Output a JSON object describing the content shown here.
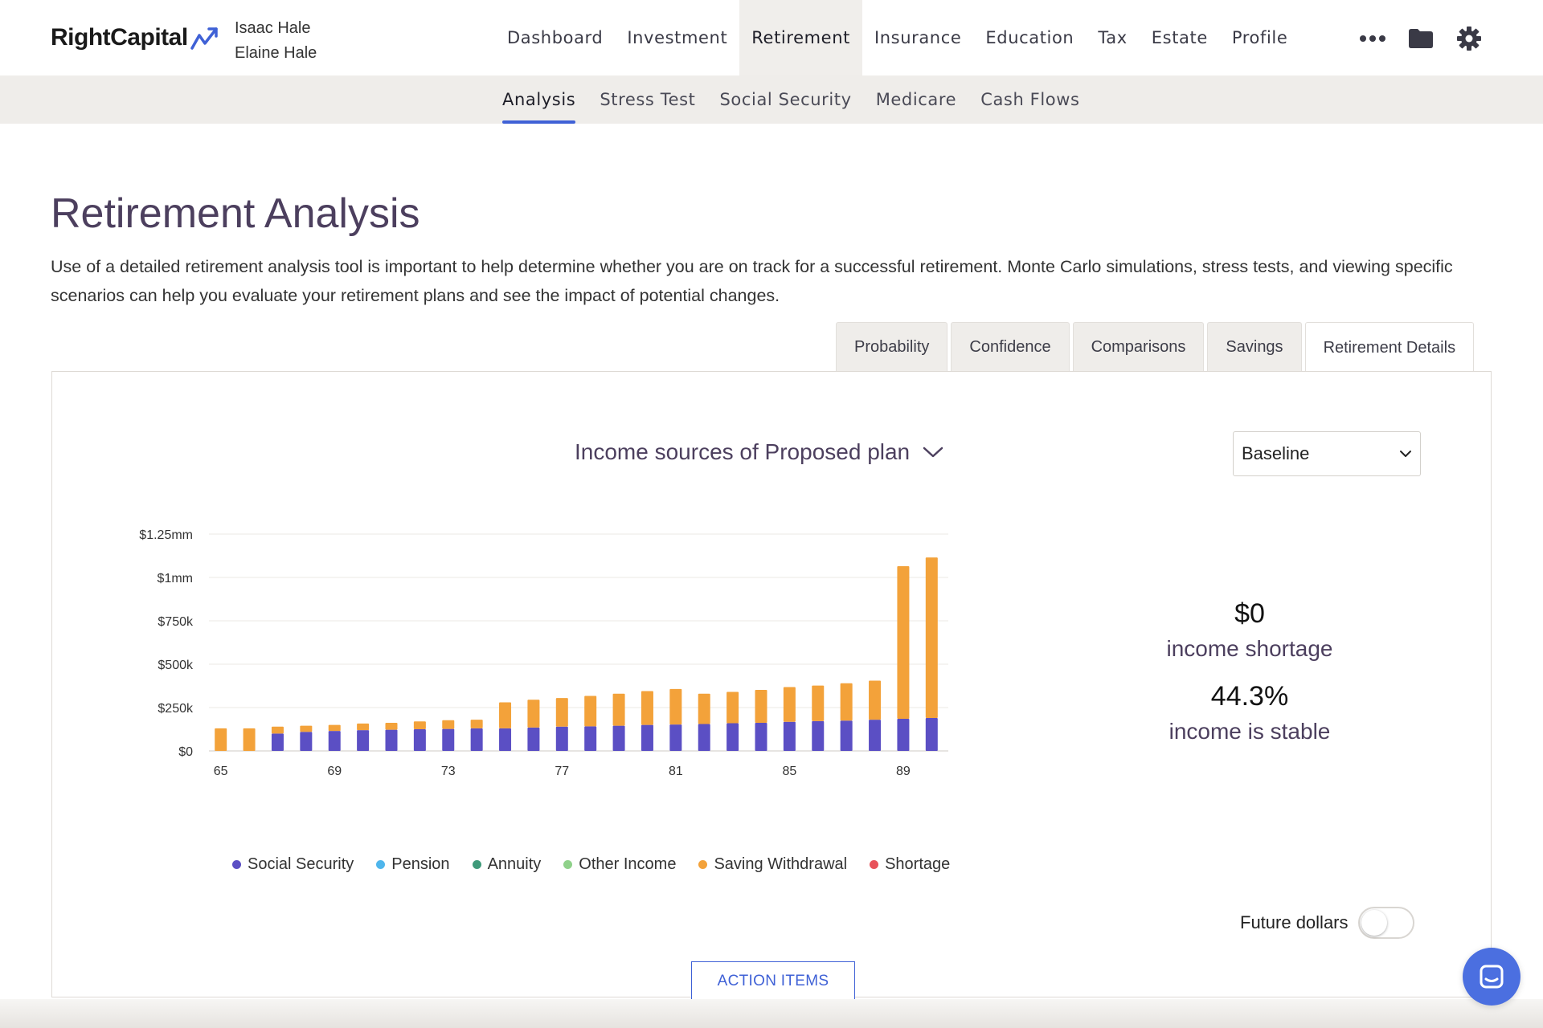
{
  "brand": {
    "name": "RightCapital"
  },
  "clients": [
    "Isaac Hale",
    "Elaine Hale"
  ],
  "main_nav": [
    {
      "label": "Dashboard",
      "active": false
    },
    {
      "label": "Investment",
      "active": false
    },
    {
      "label": "Retirement",
      "active": true
    },
    {
      "label": "Insurance",
      "active": false
    },
    {
      "label": "Education",
      "active": false
    },
    {
      "label": "Tax",
      "active": false
    },
    {
      "label": "Estate",
      "active": false
    },
    {
      "label": "Profile",
      "active": false
    }
  ],
  "nav_icons": [
    "more-dots-icon",
    "folder-icon",
    "gear-icon"
  ],
  "sub_nav": [
    {
      "label": "Analysis",
      "active": true
    },
    {
      "label": "Stress Test",
      "active": false
    },
    {
      "label": "Social Security",
      "active": false
    },
    {
      "label": "Medicare",
      "active": false
    },
    {
      "label": "Cash Flows",
      "active": false
    }
  ],
  "page": {
    "title": "Retirement Analysis",
    "description": "Use of a detailed retirement analysis tool is important to help determine whether you are on track for a successful retirement. Monte Carlo simulations, stress tests, and viewing specific scenarios can help you evaluate your retirement plans and see the impact of potential changes."
  },
  "tabs": [
    {
      "label": "Probability",
      "active": false
    },
    {
      "label": "Confidence",
      "active": false
    },
    {
      "label": "Comparisons",
      "active": false
    },
    {
      "label": "Savings",
      "active": false
    },
    {
      "label": "Retirement Details",
      "active": true
    }
  ],
  "panel": {
    "chart_selector": "Income sources of Proposed plan",
    "scenario_select": "Baseline",
    "stats": {
      "shortage_value": "$0",
      "shortage_label": "income shortage",
      "stable_value": "44.3%",
      "stable_label": "income is stable"
    },
    "toggle_label": "Future dollars",
    "toggle_on": false,
    "action_button": "ACTION ITEMS"
  },
  "colors": {
    "accent": "#3f61d6",
    "social_security": "#5b4fc4",
    "pension": "#4fb6ec",
    "annuity": "#3f9a7a",
    "other_income": "#8fd18a",
    "saving_withdrawal": "#f3a23a",
    "shortage": "#e8525a"
  },
  "chart_data": {
    "type": "bar",
    "stacked": true,
    "categories": [
      "65",
      "66",
      "67",
      "68",
      "69",
      "70",
      "71",
      "72",
      "73",
      "74",
      "75",
      "76",
      "77",
      "78",
      "79",
      "80",
      "81",
      "82",
      "83",
      "84",
      "85",
      "86",
      "87",
      "88",
      "89",
      "90"
    ],
    "x_tick_labels": [
      "65",
      "69",
      "73",
      "77",
      "81",
      "85",
      "89"
    ],
    "y_tick_labels": [
      "$0",
      "$250k",
      "$500k",
      "$750k",
      "$1mm",
      "$1.25mm"
    ],
    "ylim": [
      0,
      1250000
    ],
    "y_ticks": [
      0,
      250000,
      500000,
      750000,
      1000000,
      1250000
    ],
    "grid": true,
    "series": [
      {
        "name": "Social Security",
        "color": "#5b4fc4",
        "values": [
          0,
          0,
          100000,
          110000,
          115000,
          120000,
          122000,
          125000,
          127000,
          130000,
          130000,
          135000,
          140000,
          142000,
          145000,
          150000,
          152000,
          155000,
          160000,
          162000,
          168000,
          172000,
          175000,
          180000,
          185000,
          190000
        ]
      },
      {
        "name": "Pension",
        "color": "#4fb6ec",
        "values": [
          0,
          0,
          0,
          0,
          0,
          0,
          0,
          0,
          0,
          0,
          0,
          0,
          0,
          0,
          0,
          0,
          0,
          0,
          0,
          0,
          0,
          0,
          0,
          0,
          0,
          0
        ]
      },
      {
        "name": "Annuity",
        "color": "#3f9a7a",
        "values": [
          0,
          0,
          0,
          0,
          0,
          0,
          0,
          0,
          0,
          0,
          0,
          0,
          0,
          0,
          0,
          0,
          0,
          0,
          0,
          0,
          0,
          0,
          0,
          0,
          0,
          0
        ]
      },
      {
        "name": "Other Income",
        "color": "#8fd18a",
        "values": [
          0,
          0,
          0,
          0,
          0,
          0,
          0,
          0,
          0,
          0,
          0,
          0,
          0,
          0,
          0,
          0,
          0,
          0,
          0,
          0,
          0,
          0,
          0,
          0,
          0,
          0
        ]
      },
      {
        "name": "Saving Withdrawal",
        "color": "#f3a23a",
        "values": [
          130000,
          130000,
          40000,
          35000,
          35000,
          38000,
          40000,
          45000,
          50000,
          50000,
          150000,
          160000,
          165000,
          175000,
          185000,
          195000,
          205000,
          175000,
          180000,
          190000,
          200000,
          205000,
          215000,
          225000,
          880000,
          925000
        ]
      },
      {
        "name": "Shortage",
        "color": "#e8525a",
        "values": [
          0,
          0,
          0,
          0,
          0,
          0,
          0,
          0,
          0,
          0,
          0,
          0,
          0,
          0,
          0,
          0,
          0,
          0,
          0,
          0,
          0,
          0,
          0,
          0,
          0,
          0
        ]
      }
    ],
    "legend_position": "bottom"
  }
}
